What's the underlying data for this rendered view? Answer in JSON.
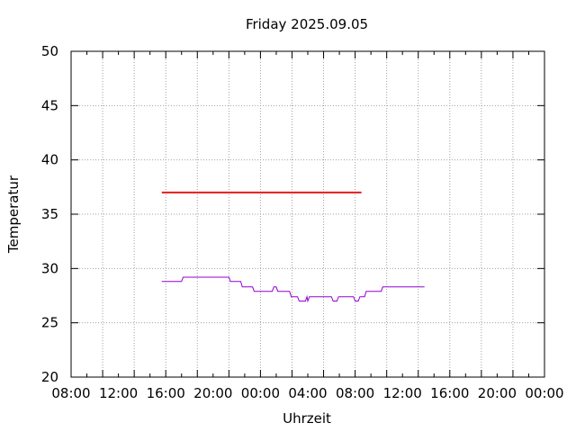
{
  "chart_data": {
    "type": "line",
    "title": "Friday 2025.09.05",
    "xlabel": "Uhrzeit",
    "ylabel": "Temperatur",
    "ylim": [
      20,
      50
    ],
    "yticks": [
      20,
      25,
      30,
      35,
      40,
      45,
      50
    ],
    "xlim": [
      0,
      60
    ],
    "xtick_hours": [
      0,
      4,
      8,
      12,
      16,
      20,
      24,
      28,
      32,
      36,
      40,
      44,
      48,
      52,
      56,
      60
    ],
    "xticks": [
      0,
      4,
      8,
      12,
      16,
      20,
      24,
      28,
      32,
      36,
      40
    ],
    "xtick_labels": [
      "08:00",
      "12:00",
      "16:00",
      "20:00",
      "00:00",
      "04:00",
      "08:00",
      "12:00",
      "16:00",
      "20:00",
      "00:00"
    ],
    "grid": true,
    "series": [
      {
        "color": "#e41a1c",
        "points": [
          [
            11.5,
            37
          ],
          [
            36.8,
            37
          ]
        ]
      },
      {
        "color": "#9400d3",
        "points": [
          [
            11.5,
            28.8
          ],
          [
            14.0,
            28.8
          ],
          [
            14.2,
            29.2
          ],
          [
            20.0,
            29.2
          ],
          [
            20.2,
            28.8
          ],
          [
            21.5,
            28.8
          ],
          [
            21.7,
            28.3
          ],
          [
            23.0,
            28.3
          ],
          [
            23.2,
            27.9
          ],
          [
            25.5,
            27.9
          ],
          [
            25.7,
            28.3
          ],
          [
            26.0,
            28.3
          ],
          [
            26.2,
            27.9
          ],
          [
            27.7,
            27.9
          ],
          [
            27.9,
            27.4
          ],
          [
            28.7,
            27.4
          ],
          [
            28.9,
            27.0
          ],
          [
            29.7,
            27.0
          ],
          [
            29.9,
            27.4
          ],
          [
            30.0,
            27.0
          ],
          [
            30.2,
            27.4
          ],
          [
            33.0,
            27.4
          ],
          [
            33.2,
            27.0
          ],
          [
            33.7,
            27.0
          ],
          [
            33.9,
            27.4
          ],
          [
            35.8,
            27.4
          ],
          [
            36.0,
            27.0
          ],
          [
            36.4,
            27.0
          ],
          [
            36.6,
            27.4
          ],
          [
            37.2,
            27.4
          ],
          [
            37.4,
            27.9
          ],
          [
            39.3,
            27.9
          ],
          [
            39.5,
            28.3
          ],
          [
            44.8,
            28.3
          ]
        ]
      }
    ]
  }
}
